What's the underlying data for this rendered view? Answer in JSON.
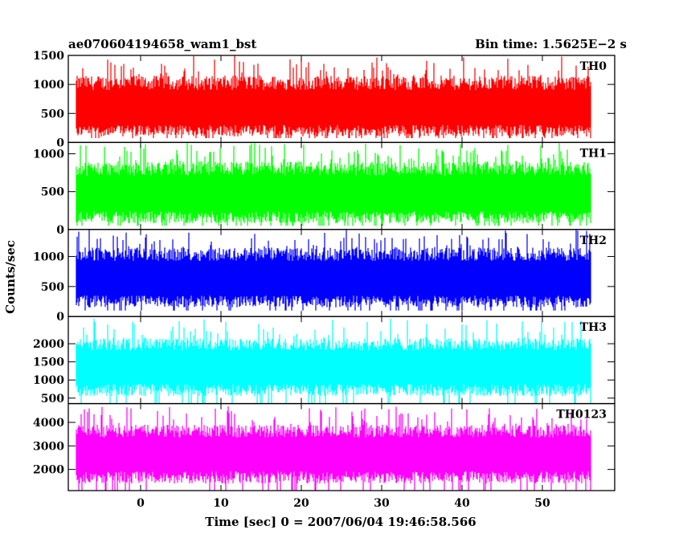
{
  "chart_data": {
    "type": "line",
    "title": "ae070604194658_wam1_bst",
    "subtitle": "Bin time: 1.5625E−2 s",
    "xlabel": "Time [sec] 0 = 2007/06/04 19:46:58.566",
    "ylabel": "Counts/sec",
    "xlim": [
      -9,
      59
    ],
    "x_range_data": [
      -8,
      56
    ],
    "xticks": [
      0,
      10,
      20,
      30,
      40,
      50
    ],
    "grid": false,
    "panels": [
      {
        "name": "TH0",
        "color": "#ff0000",
        "ylim": [
          0,
          1500
        ],
        "yticks": [
          0,
          500,
          1000,
          1500
        ],
        "baseline": 150,
        "mean": 600,
        "low_band": 100,
        "high_band": 1150,
        "peak": 1500
      },
      {
        "name": "TH1",
        "color": "#00ff00",
        "ylim": [
          0,
          1150
        ],
        "yticks": [
          0,
          500,
          1000
        ],
        "baseline": 100,
        "mean": 480,
        "low_band": 80,
        "high_band": 900,
        "peak": 1150
      },
      {
        "name": "TH2",
        "color": "#0000ff",
        "ylim": [
          0,
          1450
        ],
        "yticks": [
          0,
          500,
          1000
        ],
        "baseline": 200,
        "mean": 650,
        "low_band": 150,
        "high_band": 1150,
        "peak": 1450
      },
      {
        "name": "TH3",
        "color": "#00ffff",
        "ylim": [
          350,
          2750
        ],
        "yticks": [
          500,
          1000,
          1500,
          2000
        ],
        "baseline": 700,
        "mean": 1400,
        "low_band": 550,
        "high_band": 2150,
        "peak": 2700
      },
      {
        "name": "TH0123",
        "color": "#ff00ff",
        "ylim": [
          1100,
          4800
        ],
        "yticks": [
          2000,
          3000,
          4000
        ],
        "baseline": 1700,
        "mean": 2700,
        "low_band": 1400,
        "high_band": 3900,
        "peak": 4700
      }
    ]
  }
}
